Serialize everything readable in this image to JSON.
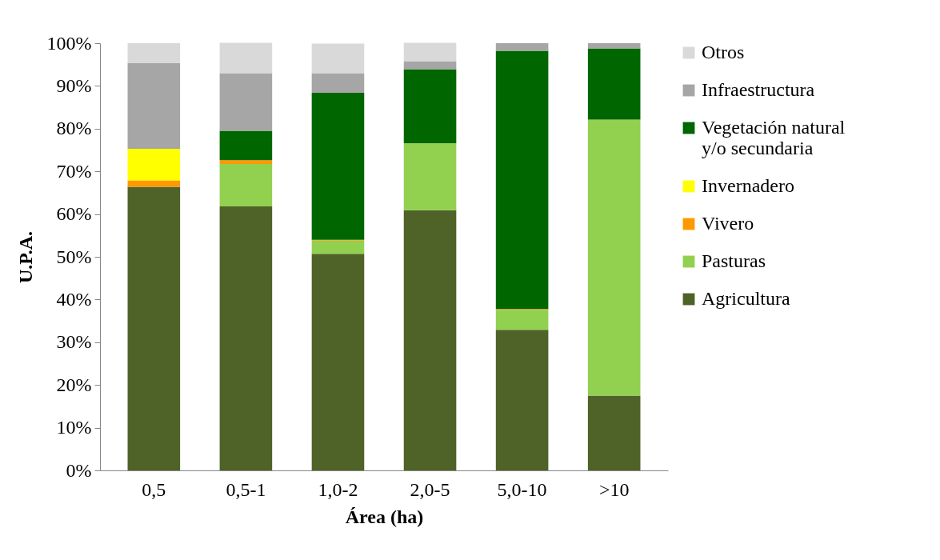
{
  "chart_data": {
    "type": "bar",
    "stacked": true,
    "xlabel": "Área (ha)",
    "ylabel": "U.P.A.",
    "categories": [
      "0,5",
      "0,5-1",
      "1,0-2",
      "2,0-5",
      "5,0-10",
      ">10"
    ],
    "ylim": [
      0,
      100
    ],
    "yticks": [
      {
        "value": 0,
        "label": "0%"
      },
      {
        "value": 10,
        "label": "10%"
      },
      {
        "value": 20,
        "label": "20%"
      },
      {
        "value": 30,
        "label": "30%"
      },
      {
        "value": 40,
        "label": "40%"
      },
      {
        "value": 50,
        "label": "50%"
      },
      {
        "value": 60,
        "label": "60%"
      },
      {
        "value": 70,
        "label": "70%"
      },
      {
        "value": 80,
        "label": "80%"
      },
      {
        "value": 90,
        "label": "90%"
      },
      {
        "value": 100,
        "label": "100%"
      }
    ],
    "grid": false,
    "legend": "right",
    "series": [
      {
        "name": "Agricultura",
        "color": "#4f6228",
        "values": [
          66.4,
          61.8,
          50.7,
          60.9,
          32.9,
          17.5
        ]
      },
      {
        "name": "Pasturas",
        "color": "#92d050",
        "values": [
          0,
          9.9,
          3.1,
          15.7,
          4.7,
          64.6
        ]
      },
      {
        "name": "Vivero",
        "color": "#ff9900",
        "values": [
          1.5,
          0.9,
          0.2,
          0,
          0.2,
          0
        ]
      },
      {
        "name": "Invernadero",
        "color": "#ffff00",
        "values": [
          7.4,
          0,
          0,
          0,
          0,
          0
        ]
      },
      {
        "name": "Vegetación natural y/o secundaria",
        "color": "#006600",
        "values": [
          0,
          6.9,
          34.4,
          17.3,
          60.4,
          16.7
        ]
      },
      {
        "name": "Infraestructura",
        "color": "#a6a6a6",
        "values": [
          20.0,
          13.5,
          4.6,
          1.9,
          1.8,
          1.2
        ]
      },
      {
        "name": "Otros",
        "color": "#d9d9d9",
        "values": [
          4.7,
          7.1,
          6.9,
          4.3,
          0,
          0
        ]
      }
    ]
  }
}
